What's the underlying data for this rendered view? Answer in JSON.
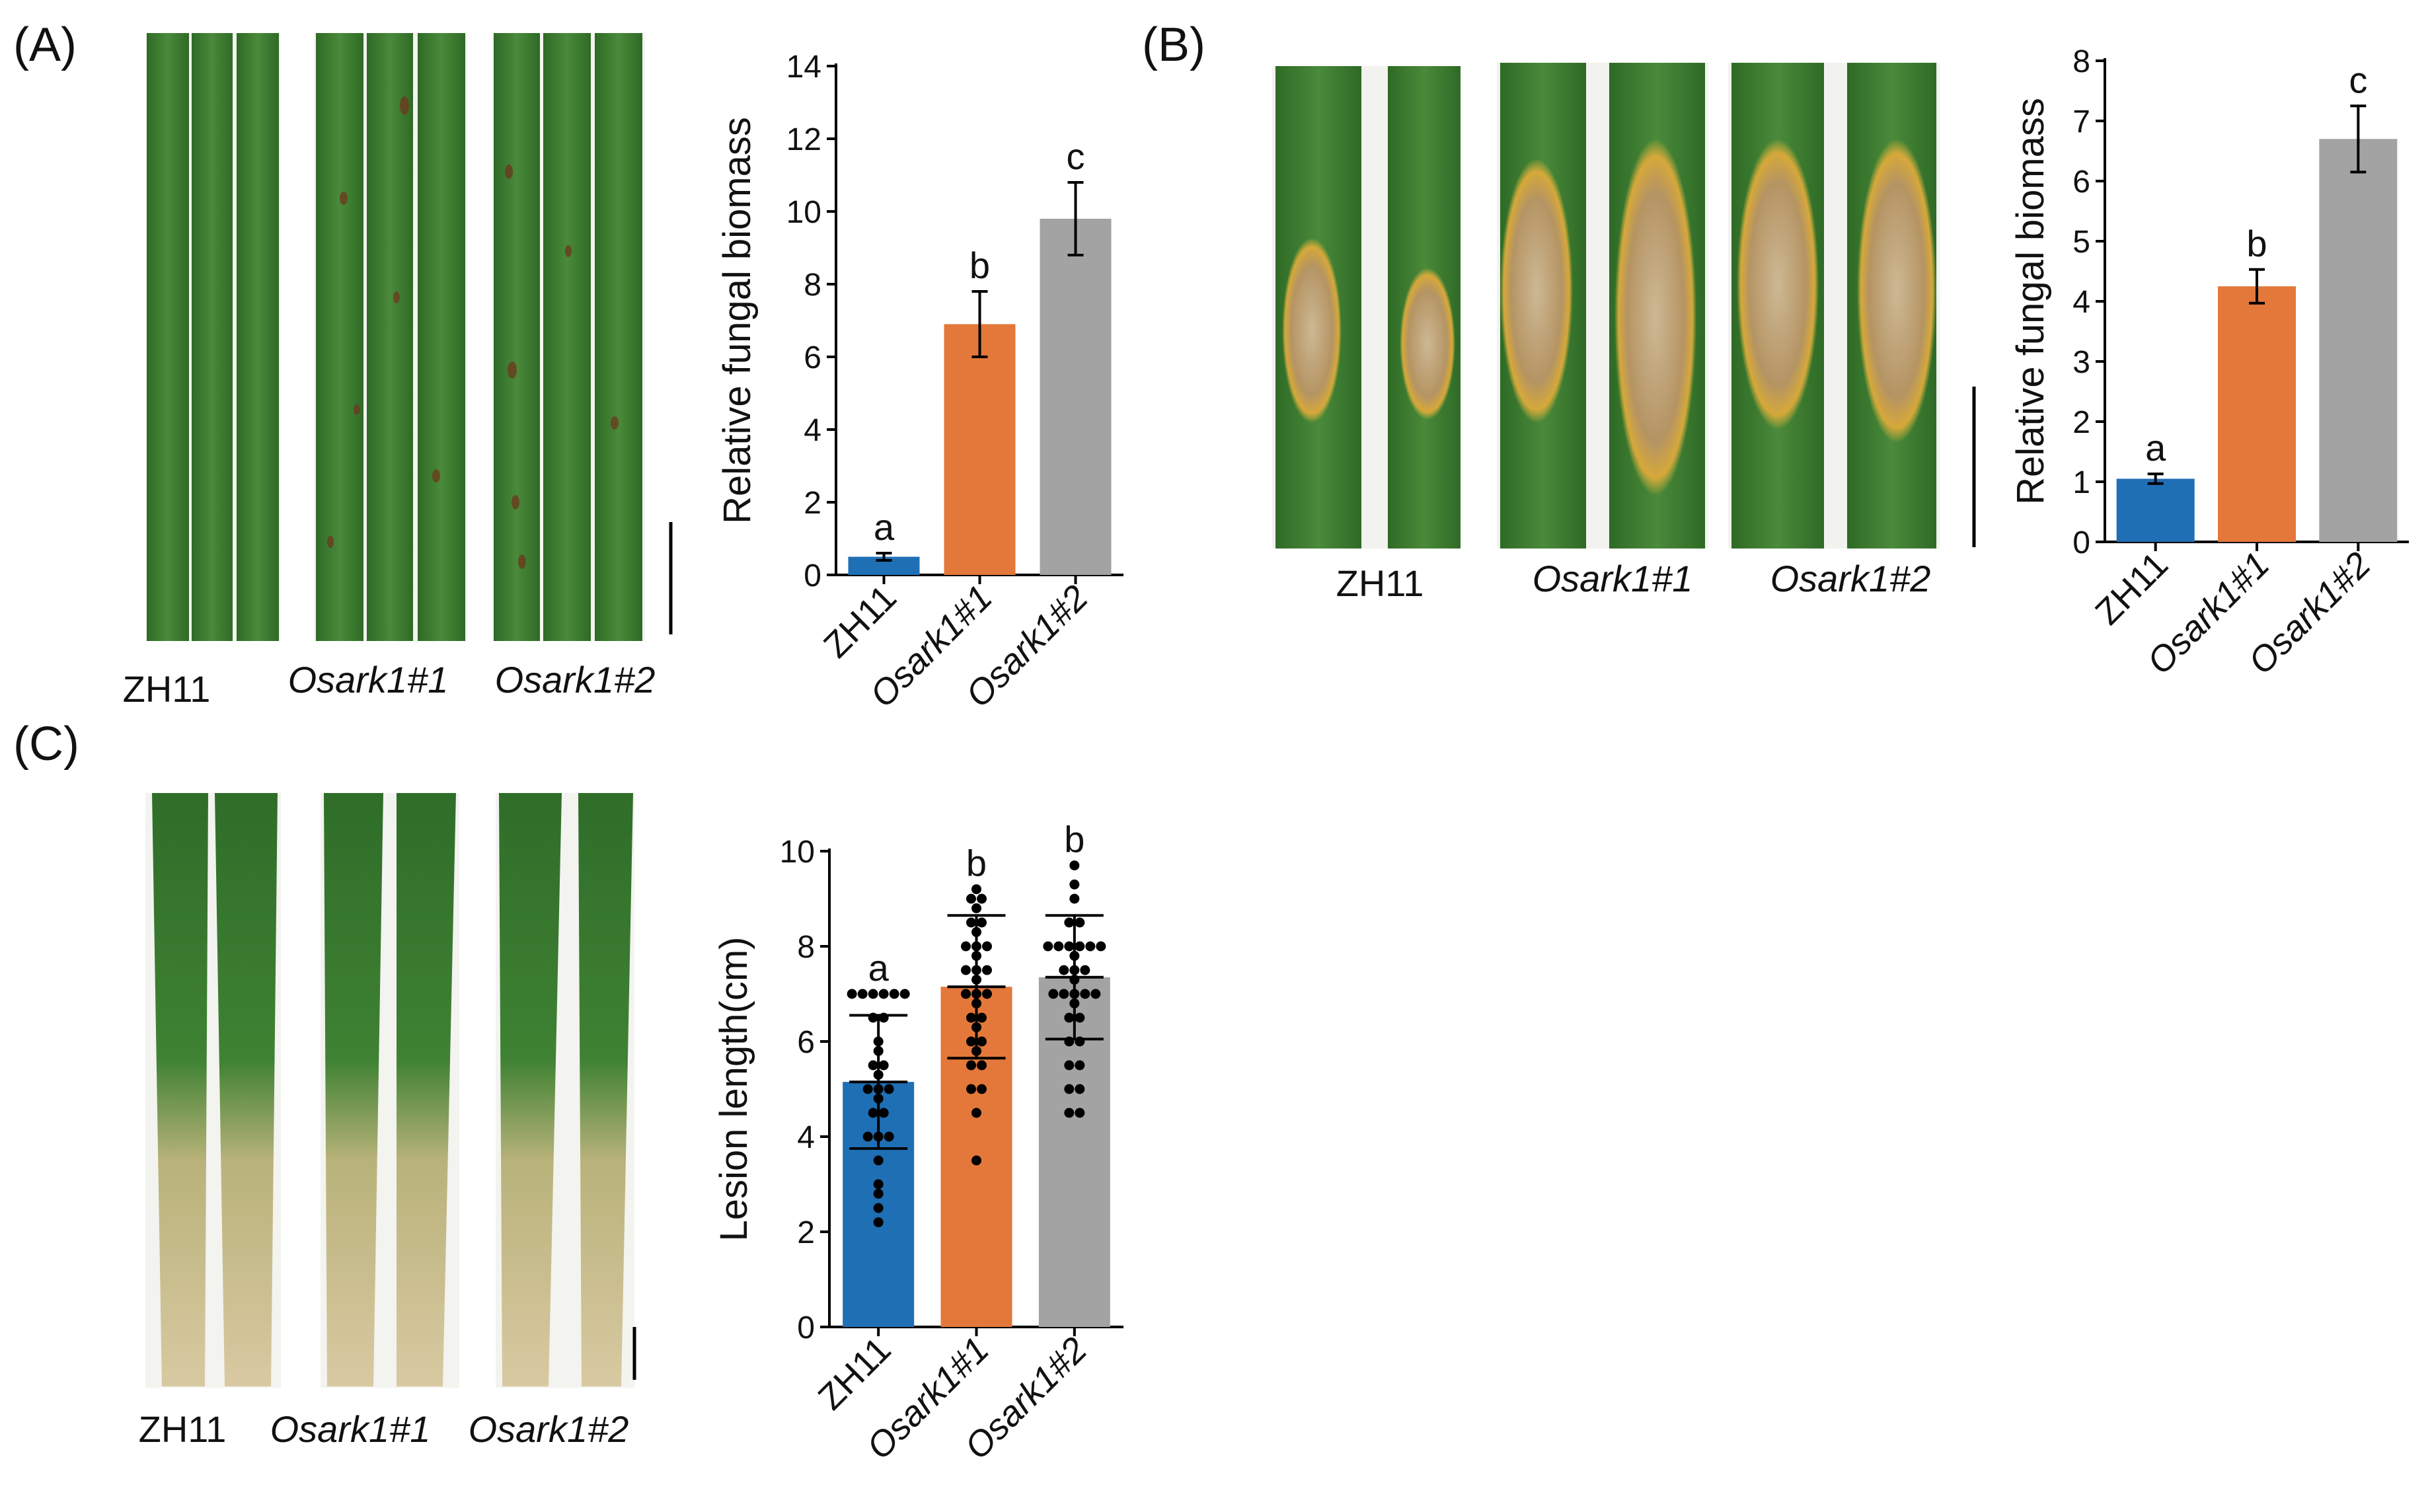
{
  "panels": {
    "A": {
      "label": "(A)",
      "photo_labels": [
        "ZH11",
        "Osark1#1",
        "Osark1#2"
      ]
    },
    "B": {
      "label": "(B)",
      "photo_labels": [
        "ZH11",
        "Osark1#1",
        "Osark1#2"
      ]
    },
    "C": {
      "label": "(C)",
      "photo_labels": [
        "ZH11",
        "Osark1#1",
        "Osark1#2"
      ]
    }
  },
  "colors": {
    "ZH11": "#1f6fb5",
    "Osark1#1": "#e3783a",
    "Osark1#2": "#a3a3a3",
    "leaf_green": "#3e7d33",
    "leaf_dark": "#2f6a28",
    "lesion_tan": "#d6c39a"
  },
  "chart_data": [
    {
      "id": "A",
      "type": "bar",
      "categories": [
        "ZH11",
        "Osark1#1",
        "Osark1#2"
      ],
      "values": [
        0.5,
        6.9,
        9.8
      ],
      "errors": [
        0.1,
        0.9,
        1.0
      ],
      "significance": [
        "a",
        "b",
        "c"
      ],
      "ylabel": "Relative fungal biomass",
      "ylim": [
        0,
        14
      ],
      "yticks": [
        0,
        2,
        4,
        6,
        8,
        10,
        12,
        14
      ]
    },
    {
      "id": "B",
      "type": "bar",
      "categories": [
        "ZH11",
        "Osark1#1",
        "Osark1#2"
      ],
      "values": [
        1.05,
        4.25,
        6.7
      ],
      "errors": [
        0.08,
        0.28,
        0.55
      ],
      "significance": [
        "a",
        "b",
        "c"
      ],
      "ylabel": "Relative fungal biomass",
      "ylim": [
        0,
        8
      ],
      "yticks": [
        0,
        1,
        2,
        3,
        4,
        5,
        6,
        7,
        8
      ]
    },
    {
      "id": "C",
      "type": "bar",
      "categories": [
        "ZH11",
        "Osark1#1",
        "Osark1#2"
      ],
      "values": [
        5.15,
        7.15,
        7.35
      ],
      "sd": [
        1.4,
        1.5,
        1.3
      ],
      "significance": [
        "a",
        "b",
        "b"
      ],
      "ylabel": "Lesion length(cm)",
      "ylim": [
        0,
        10
      ],
      "yticks": [
        0,
        2,
        4,
        6,
        8,
        10
      ],
      "points": [
        [
          7.0,
          7.0,
          7.0,
          7.0,
          7.0,
          7.0,
          6.5,
          6.5,
          6.0,
          5.8,
          5.5,
          5.5,
          5.3,
          5.0,
          5.0,
          5.0,
          4.8,
          4.5,
          4.5,
          4.0,
          4.0,
          4.0,
          3.5,
          3.0,
          2.8,
          2.5,
          2.2
        ],
        [
          9.2,
          9.0,
          9.0,
          8.8,
          8.5,
          8.5,
          8.3,
          8.0,
          8.0,
          8.0,
          7.8,
          7.5,
          7.5,
          7.5,
          7.3,
          7.0,
          7.0,
          7.0,
          6.8,
          6.5,
          6.5,
          6.3,
          6.0,
          6.0,
          5.8,
          5.5,
          5.5,
          5.0,
          5.0,
          4.5,
          3.5
        ],
        [
          9.7,
          9.3,
          9.0,
          8.5,
          8.5,
          8.0,
          8.0,
          8.0,
          8.0,
          8.0,
          8.0,
          7.8,
          7.5,
          7.5,
          7.5,
          7.3,
          7.0,
          7.0,
          7.0,
          7.0,
          7.0,
          6.8,
          6.5,
          6.5,
          6.0,
          6.0,
          5.5,
          5.5,
          5.0,
          5.0,
          4.5,
          4.5
        ]
      ]
    }
  ]
}
